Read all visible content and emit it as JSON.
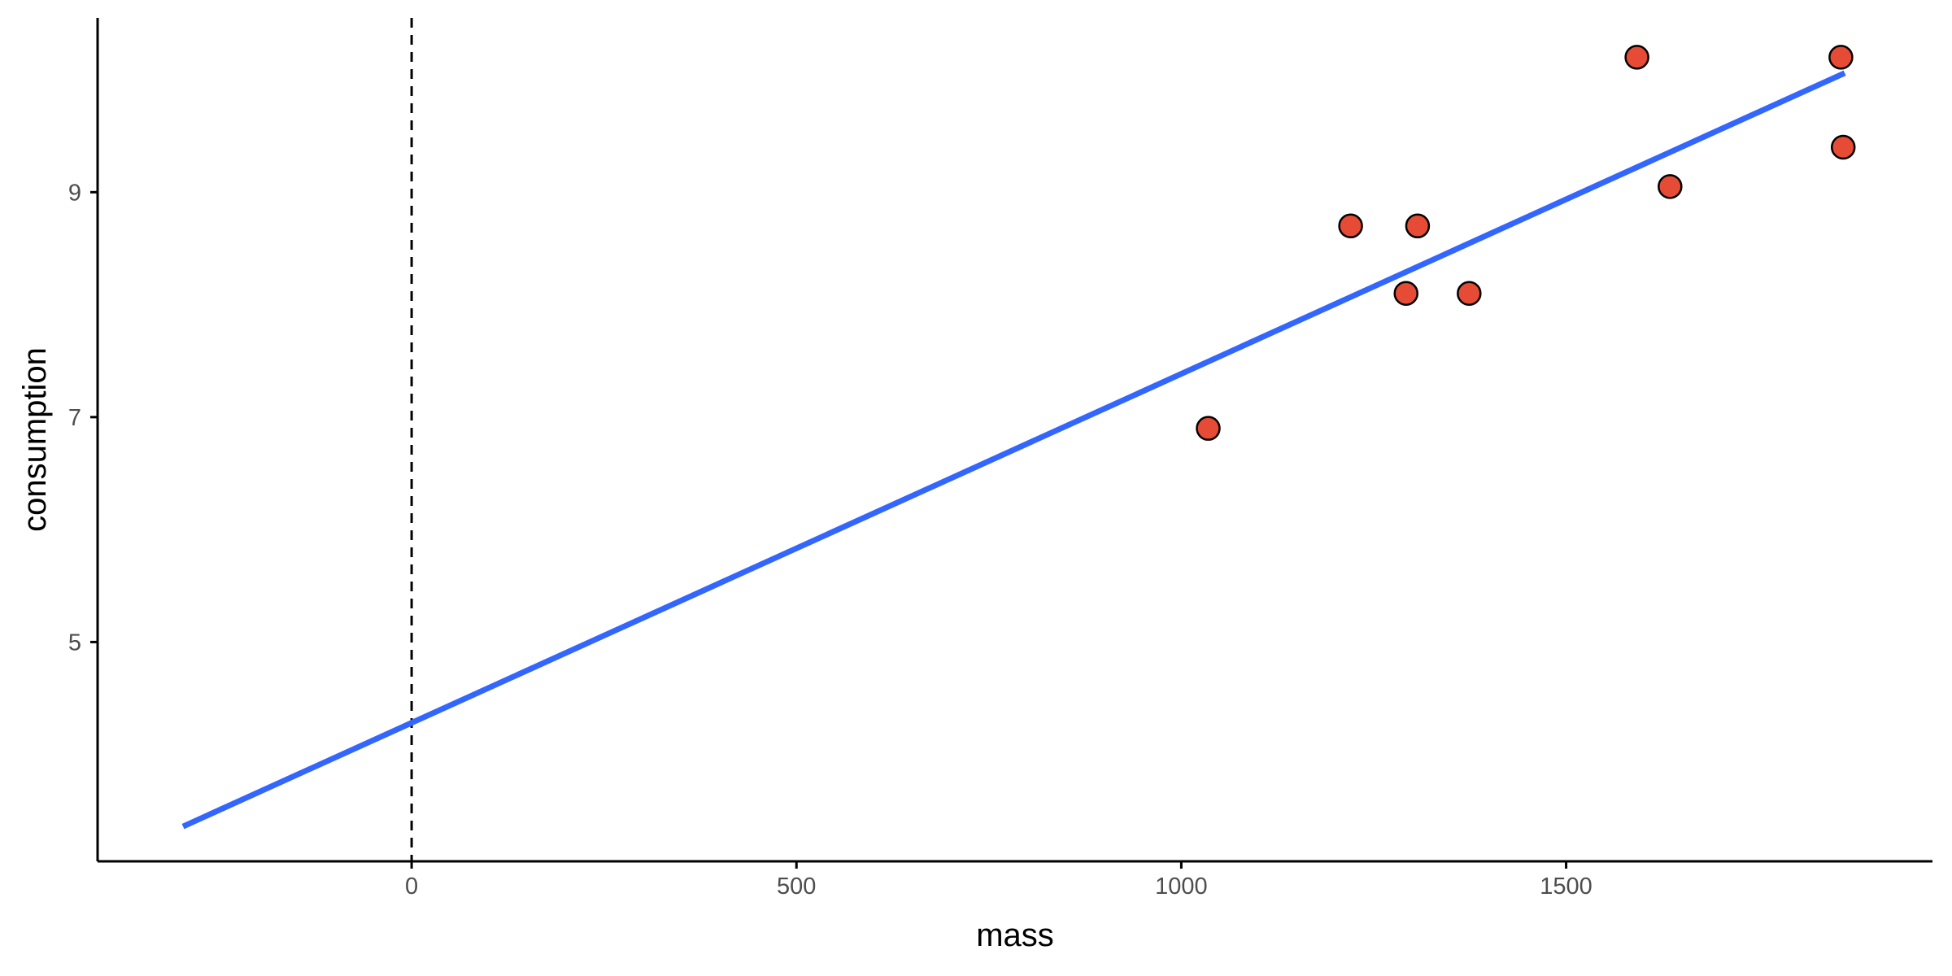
{
  "chart_data": {
    "type": "scatter",
    "title": "",
    "xlabel": "mass",
    "ylabel": "consumption",
    "xlim": [
      -408,
      1976
    ],
    "ylim": [
      3.05,
      10.55
    ],
    "x_ticks": [
      0,
      500,
      1000,
      1500
    ],
    "x_tick_labels": [
      "0",
      "500",
      "1000",
      "1500"
    ],
    "y_ticks": [
      5,
      7,
      9
    ],
    "y_tick_labels": [
      "5",
      "7",
      "9"
    ],
    "grid": false,
    "legend": "none",
    "points": [
      {
        "x": 1035,
        "y": 6.9
      },
      {
        "x": 1220,
        "y": 8.7
      },
      {
        "x": 1292,
        "y": 8.1
      },
      {
        "x": 1307,
        "y": 8.7
      },
      {
        "x": 1374,
        "y": 8.1
      },
      {
        "x": 1592,
        "y": 10.2
      },
      {
        "x": 1635,
        "y": 9.05
      },
      {
        "x": 1857,
        "y": 10.2
      },
      {
        "x": 1860,
        "y": 9.4
      }
    ],
    "fit_line": {
      "x": [
        -297,
        1862
      ],
      "y": [
        3.36,
        10.06
      ]
    },
    "vline_x": 0,
    "colors": {
      "points": "#E64B35",
      "point_outline": "#000000",
      "fit_line": "#3366FF",
      "axis": "#000000",
      "vline": "#000000"
    }
  }
}
